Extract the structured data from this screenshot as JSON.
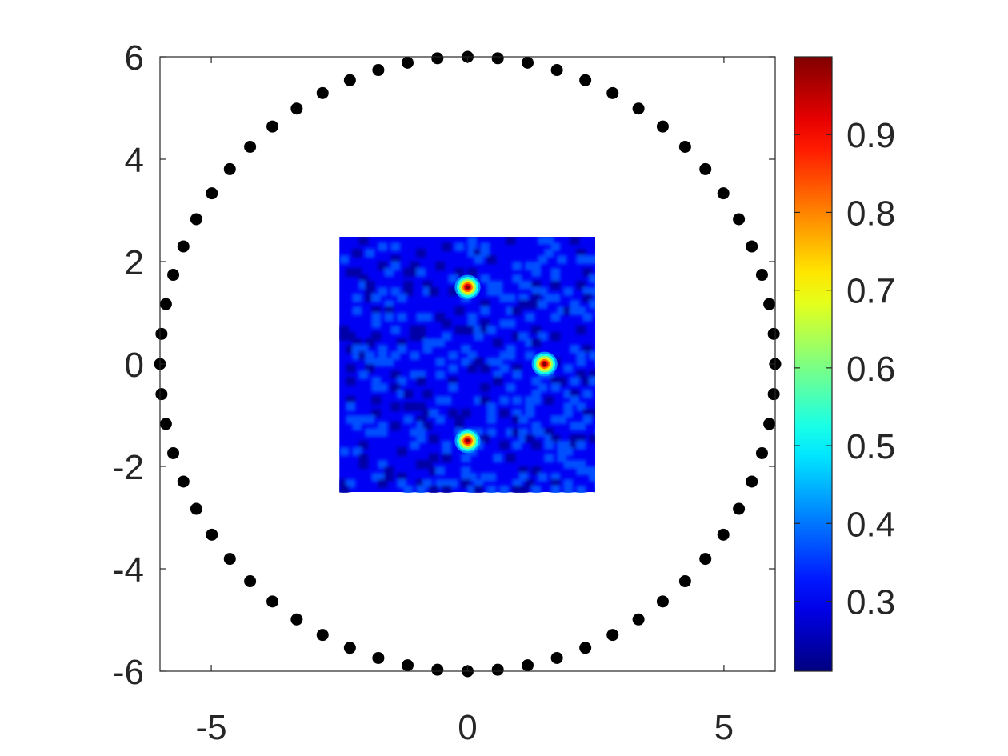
{
  "chart_data": {
    "type": "scatter",
    "title": "",
    "xlabel": "",
    "ylabel": "",
    "xlim": [
      -6,
      6
    ],
    "ylim": [
      -6,
      6
    ],
    "x_ticks": [
      -5,
      0,
      5
    ],
    "y_ticks": [
      -6,
      -4,
      -2,
      0,
      2,
      4,
      6
    ],
    "x_tick_labels": [
      "-5",
      "0",
      "5"
    ],
    "y_tick_labels": [
      "-6",
      "-4",
      "-2",
      "0",
      "2",
      "4",
      "6"
    ],
    "grid": false,
    "legend": "none",
    "sensor_points": {
      "count": 64,
      "radius": 6,
      "center": [
        0,
        0
      ],
      "color": "#000000"
    },
    "field": {
      "type": "heatmap",
      "colormap": "jet",
      "x_range": [
        -2.5,
        2.5
      ],
      "y_range": [
        -2.5,
        2.5
      ],
      "background_value": 0.3,
      "value_range": [
        0.21,
        1.0
      ],
      "peaks": [
        {
          "x": 0.0,
          "y": 1.5,
          "value": 1.0
        },
        {
          "x": 1.5,
          "y": 0.0,
          "value": 1.0
        },
        {
          "x": 0.0,
          "y": -1.5,
          "value": 1.0
        }
      ]
    },
    "colorbar": {
      "location": "right",
      "limits": [
        0.21,
        1.0
      ],
      "ticks": [
        0.3,
        0.4,
        0.5,
        0.6,
        0.7,
        0.8,
        0.9
      ],
      "tick_labels": [
        "0.3",
        "0.4",
        "0.5",
        "0.6",
        "0.7",
        "0.8",
        "0.9"
      ]
    }
  }
}
